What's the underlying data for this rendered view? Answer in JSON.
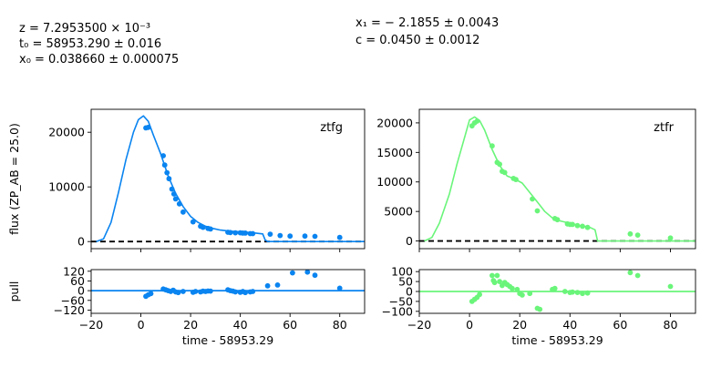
{
  "params_left": [
    "z = 7.2953500 × 10⁻³",
    "t₀ = 58953.290 ± 0.016",
    "x₀ = 0.038660 ± 0.000075"
  ],
  "params_right": [
    "x₁ = − 2.1855 ± 0.0043",
    "c = 0.0450 ± 0.0012"
  ],
  "chart_data": [
    {
      "type": "scatter",
      "panel": "flux-ztfg",
      "band": "ztfg",
      "color": "#0a84f0",
      "xlim": [
        -20,
        90
      ],
      "ylim": [
        -1300,
        24200
      ],
      "xticks": [
        -20,
        0,
        20,
        40,
        60,
        80
      ],
      "yticks": [
        0,
        10000,
        20000
      ],
      "ylabel": "flux (ZP_AB = 25.0)",
      "points": [
        [
          2,
          20800
        ],
        [
          3,
          20900
        ],
        [
          9,
          15700
        ],
        [
          9.6,
          14000
        ],
        [
          10.5,
          12600
        ],
        [
          11.3,
          11500
        ],
        [
          12.5,
          9600
        ],
        [
          13.3,
          8700
        ],
        [
          14,
          7800
        ],
        [
          15.5,
          6900
        ],
        [
          17,
          5400
        ],
        [
          21,
          3600
        ],
        [
          24,
          2800
        ],
        [
          25,
          2600
        ],
        [
          27,
          2400
        ],
        [
          28,
          2300
        ],
        [
          35,
          1700
        ],
        [
          36,
          1650
        ],
        [
          38,
          1600
        ],
        [
          40,
          1600
        ],
        [
          41,
          1550
        ],
        [
          42,
          1550
        ],
        [
          44,
          1450
        ],
        [
          45,
          1450
        ],
        [
          52,
          1350
        ],
        [
          56,
          1100
        ],
        [
          60,
          1000
        ],
        [
          66,
          1000
        ],
        [
          70,
          950
        ],
        [
          80,
          750
        ]
      ],
      "model": [
        [
          -18,
          0
        ],
        [
          -15,
          500
        ],
        [
          -12,
          3500
        ],
        [
          -9,
          9000
        ],
        [
          -6,
          15000
        ],
        [
          -3,
          20000
        ],
        [
          -1,
          22300
        ],
        [
          1,
          23000
        ],
        [
          3,
          22000
        ],
        [
          5,
          19500
        ],
        [
          8,
          16000
        ],
        [
          11,
          12000
        ],
        [
          14,
          8800
        ],
        [
          17,
          6400
        ],
        [
          20,
          4600
        ],
        [
          23,
          3500
        ],
        [
          26,
          2800
        ],
        [
          29,
          2400
        ],
        [
          32,
          2100
        ],
        [
          36,
          1900
        ],
        [
          40,
          1800
        ],
        [
          45,
          1600
        ],
        [
          49,
          1400
        ],
        [
          50,
          300
        ],
        [
          51,
          0
        ],
        [
          90,
          0
        ]
      ]
    },
    {
      "type": "scatter",
      "panel": "flux-ztfr",
      "band": "ztfr",
      "color": "#6af57a",
      "xlim": [
        -20,
        90
      ],
      "ylim": [
        -1300,
        22300
      ],
      "xticks": [
        -20,
        0,
        20,
        40,
        60,
        80
      ],
      "yticks": [
        0,
        5000,
        10000,
        15000,
        20000
      ],
      "points": [
        [
          1,
          19500
        ],
        [
          2,
          20000
        ],
        [
          3,
          20300
        ],
        [
          9,
          16100
        ],
        [
          11,
          13300
        ],
        [
          12,
          13000
        ],
        [
          13,
          11800
        ],
        [
          14,
          11600
        ],
        [
          17.5,
          10600
        ],
        [
          18.5,
          10400
        ],
        [
          25,
          7100
        ],
        [
          27,
          5100
        ],
        [
          34,
          3800
        ],
        [
          35,
          3600
        ],
        [
          39,
          2900
        ],
        [
          40,
          2800
        ],
        [
          41,
          2800
        ],
        [
          43,
          2600
        ],
        [
          45,
          2500
        ],
        [
          47,
          2300
        ],
        [
          64,
          1200
        ],
        [
          67,
          1000
        ],
        [
          80,
          500
        ]
      ],
      "model": [
        [
          -18,
          0
        ],
        [
          -15,
          600
        ],
        [
          -12,
          3000
        ],
        [
          -8,
          8000
        ],
        [
          -5,
          13000
        ],
        [
          -2,
          17500
        ],
        [
          0,
          20500
        ],
        [
          2,
          21000
        ],
        [
          4,
          20400
        ],
        [
          6,
          18800
        ],
        [
          9,
          15500
        ],
        [
          12,
          12800
        ],
        [
          15,
          11000
        ],
        [
          18,
          10500
        ],
        [
          21,
          9800
        ],
        [
          24,
          8200
        ],
        [
          27,
          6600
        ],
        [
          30,
          5000
        ],
        [
          33,
          3900
        ],
        [
          36,
          3400
        ],
        [
          40,
          3000
        ],
        [
          44,
          2600
        ],
        [
          48,
          2300
        ],
        [
          50,
          1900
        ],
        [
          51,
          0
        ],
        [
          90,
          0
        ]
      ]
    },
    {
      "type": "scatter",
      "panel": "pull-ztfg",
      "color": "#0a84f0",
      "xlim": [
        -20,
        90
      ],
      "ylim": [
        -140,
        130
      ],
      "xticks": [
        -20,
        0,
        20,
        40,
        60,
        80
      ],
      "xticklabels": [
        "−20",
        "0",
        "20",
        "40",
        "60",
        "80"
      ],
      "yticks": [
        120,
        60,
        0,
        -60,
        -120
      ],
      "yticklabels": [
        "120",
        "60",
        "0",
        "−60",
        "−120"
      ],
      "xlabel": "time - 58953.29",
      "ylabel": "pull",
      "points": [
        [
          2,
          -35
        ],
        [
          3,
          -25
        ],
        [
          4,
          -18
        ],
        [
          9,
          10
        ],
        [
          10,
          5
        ],
        [
          11,
          0
        ],
        [
          12,
          -5
        ],
        [
          13,
          3
        ],
        [
          14,
          -8
        ],
        [
          15,
          -12
        ],
        [
          17,
          -5
        ],
        [
          21,
          -10
        ],
        [
          22,
          -5
        ],
        [
          24,
          -8
        ],
        [
          25,
          -3
        ],
        [
          26,
          -5
        ],
        [
          27,
          -2
        ],
        [
          28,
          -3
        ],
        [
          35,
          5
        ],
        [
          36,
          0
        ],
        [
          37,
          -3
        ],
        [
          38,
          -8
        ],
        [
          40,
          -10
        ],
        [
          41,
          -5
        ],
        [
          42,
          -12
        ],
        [
          44,
          -8
        ],
        [
          45,
          -5
        ],
        [
          51,
          30
        ],
        [
          55,
          35
        ],
        [
          61,
          110
        ],
        [
          67,
          115
        ],
        [
          70,
          95
        ],
        [
          80,
          15
        ]
      ]
    },
    {
      "type": "scatter",
      "panel": "pull-ztfr",
      "color": "#6af57a",
      "xlim": [
        -20,
        90
      ],
      "ylim": [
        -110,
        110
      ],
      "xticks": [
        -20,
        0,
        20,
        40,
        60,
        80
      ],
      "xticklabels": [
        "−20",
        "0",
        "20",
        "40",
        "60",
        "80"
      ],
      "yticks": [
        100,
        50,
        0,
        -50,
        -100
      ],
      "yticklabels": [
        "100",
        "50",
        "0",
        "−50",
        "−100"
      ],
      "xlabel": "time - 58953.29",
      "points": [
        [
          1,
          -50
        ],
        [
          2,
          -40
        ],
        [
          3,
          -30
        ],
        [
          4,
          -15
        ],
        [
          9,
          80
        ],
        [
          9.5,
          55
        ],
        [
          10,
          45
        ],
        [
          11,
          80
        ],
        [
          12,
          50
        ],
        [
          13,
          30
        ],
        [
          14,
          45
        ],
        [
          15,
          35
        ],
        [
          16,
          25
        ],
        [
          17,
          15
        ],
        [
          19,
          10
        ],
        [
          20,
          -10
        ],
        [
          21,
          -18
        ],
        [
          24,
          -10
        ],
        [
          27,
          -85
        ],
        [
          28,
          -90
        ],
        [
          33,
          10
        ],
        [
          34,
          15
        ],
        [
          38,
          0
        ],
        [
          40,
          -5
        ],
        [
          41,
          -3
        ],
        [
          43,
          -5
        ],
        [
          45,
          -10
        ],
        [
          47,
          -8
        ],
        [
          64,
          95
        ],
        [
          67,
          80
        ],
        [
          80,
          25
        ]
      ]
    }
  ]
}
